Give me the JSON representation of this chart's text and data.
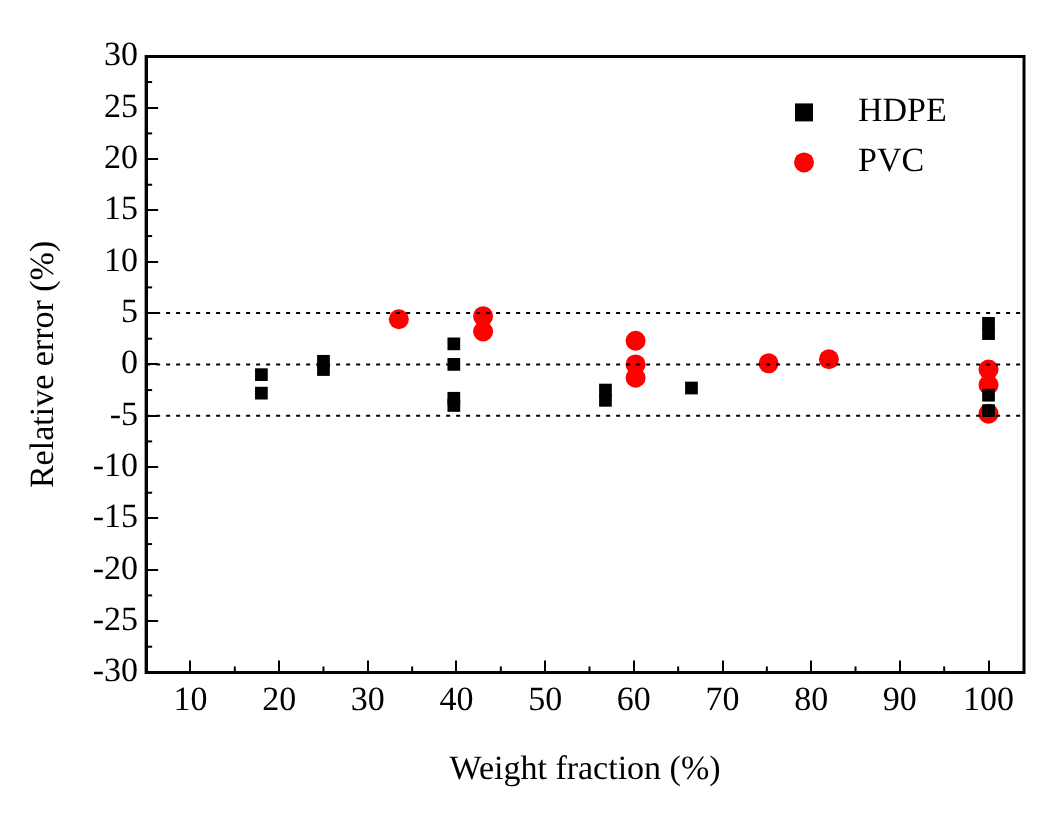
{
  "chart_data": {
    "type": "scatter",
    "xlabel": "Weight fraction (%)",
    "ylabel": "Relative error (%)",
    "xlim": [
      5,
      104
    ],
    "xticks": [
      10,
      20,
      30,
      40,
      50,
      60,
      70,
      80,
      90,
      100
    ],
    "ylim": [
      -30,
      30
    ],
    "yticks": [
      -30,
      -25,
      -20,
      -15,
      -10,
      -5,
      0,
      5,
      10,
      15,
      20,
      25,
      30
    ],
    "grid": false,
    "legend": "top right",
    "ref_lines": [
      {
        "axis": "y",
        "value": 5,
        "line_style": "dotted"
      },
      {
        "axis": "y",
        "value": 0,
        "line_style": "dotted"
      },
      {
        "axis": "y",
        "value": -5,
        "line_style": "dotted"
      }
    ],
    "series": [
      {
        "name": "HDPE",
        "color": "#000000",
        "marker": "square",
        "x": [
          18,
          18,
          25,
          25,
          39.7,
          39.7,
          39.7,
          39.7,
          56.8,
          56.8,
          66.5,
          100,
          100,
          100,
          100
        ],
        "values": [
          -1,
          -2.8,
          0.3,
          -0.5,
          2,
          0,
          -3.3,
          -4,
          -2.5,
          -3.5,
          -2.3,
          4,
          3,
          -3,
          -4.5
        ]
      },
      {
        "name": "PVC",
        "color": "#ff0000",
        "marker": "circle",
        "x": [
          33.5,
          43,
          43,
          60.2,
          60.2,
          60.2,
          75.2,
          82,
          100,
          100,
          100
        ],
        "values": [
          4.4,
          4.7,
          3.2,
          2.3,
          0,
          -1.3,
          0.1,
          0.5,
          -0.5,
          -2,
          -4.8
        ]
      }
    ]
  }
}
